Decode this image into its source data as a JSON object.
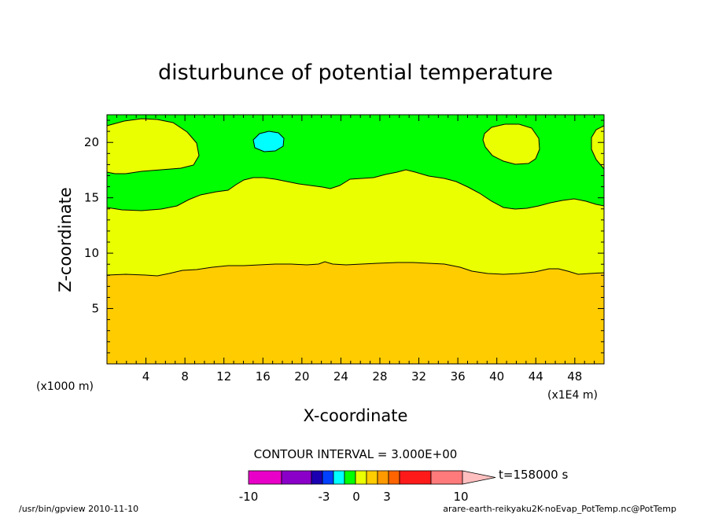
{
  "chart_data": {
    "type": "contour",
    "title": "disturbunce of potential temperature",
    "xlabel": "X-coordinate",
    "ylabel": "Z-coordinate",
    "x_unit": "(x1000 m)",
    "x_scale_note": "(x1E4 m)",
    "xlim": [
      0,
      51
    ],
    "ylim": [
      0,
      22.5
    ],
    "x_ticks": [
      4,
      8,
      12,
      16,
      20,
      24,
      28,
      32,
      36,
      40,
      44,
      48
    ],
    "y_ticks": [
      5,
      10,
      15,
      20
    ],
    "contour_interval_text": "CONTOUR INTERVAL = 3.000E+00",
    "time_label": "t=158000 s",
    "colorbar": {
      "colors": [
        "#e800c8",
        "#8a00c8",
        "#1a00b0",
        "#0040ff",
        "#00ffff",
        "#00ff00",
        "#eaff00",
        "#ffcc00",
        "#ff9900",
        "#ff6400",
        "#ff1a1a",
        "#ff7a7a",
        "#ffbfbf"
      ],
      "tick_labels": [
        "-10",
        "-3",
        "0",
        "3",
        "10"
      ]
    },
    "regions": [
      {
        "name": "lower band",
        "color": "#ffcc00",
        "z_from": 0,
        "z_to": 8.5
      },
      {
        "name": "middle band",
        "color": "#eaff00",
        "z_from": 8.5,
        "z_to": 15.5
      },
      {
        "name": "upper band",
        "color": "#00ff00",
        "z_from": 15.5,
        "z_to": 22.5
      }
    ]
  },
  "footer": {
    "left": "/usr/bin/gpview   2010-11-10",
    "right": "arare-earth-reikyaku2K-noEvap_PotTemp.nc@PotTemp"
  }
}
